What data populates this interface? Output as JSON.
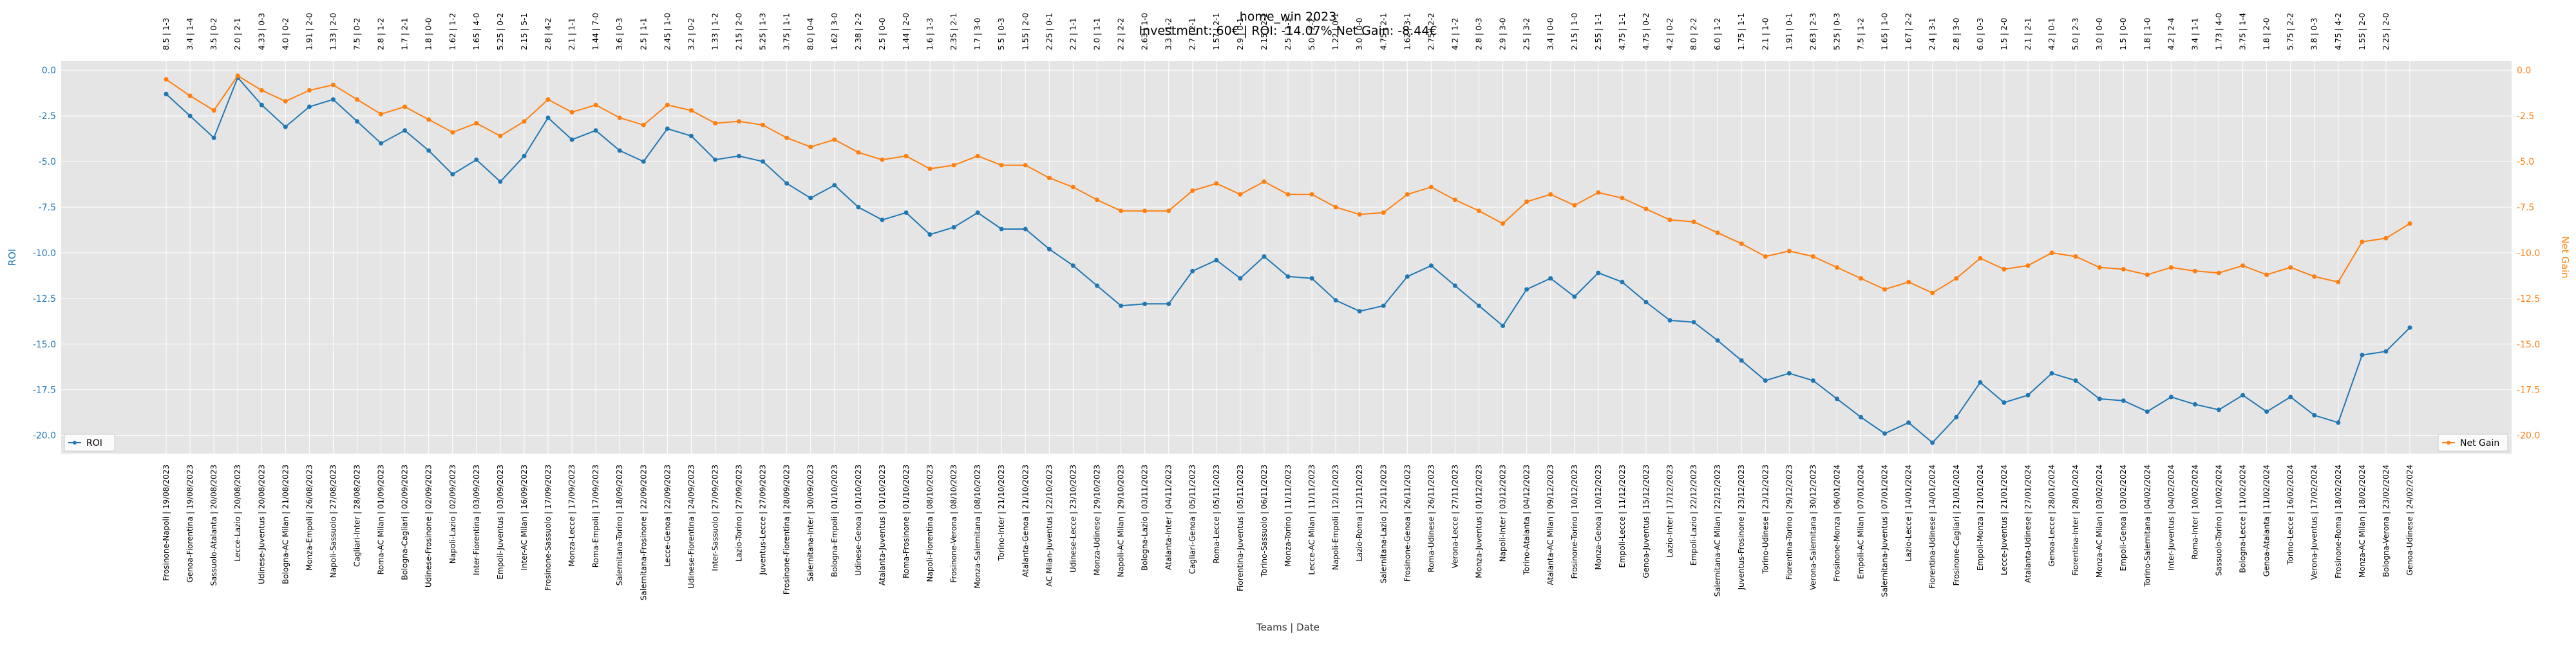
{
  "chart_data": {
    "type": "line",
    "title": "home_win 2023",
    "subtitle": "Investment: 60€ | ROI: -14.07% Net Gain: -8.44€",
    "xlabel": "Teams | Date",
    "ylabel_left": "ROI",
    "ylabel_right": "Net Gain",
    "grid": true,
    "legend_left": "bottom-left",
    "legend_right": "bottom-right",
    "ylim_left": [
      -21,
      0.5
    ],
    "ylim_right": [
      -21,
      0.5
    ],
    "yticks": [
      0.0,
      -2.5,
      -5.0,
      -7.5,
      -10.0,
      -12.5,
      -15.0,
      -17.5,
      -20.0
    ],
    "ytick_labels": [
      "0.0",
      "-2.5",
      "-5.0",
      "-7.5",
      "-10.0",
      "-12.5",
      "-15.0",
      "-17.5",
      "-20.0"
    ],
    "colors": {
      "roi": "#1f77b4",
      "net_gain": "#ff7f0e",
      "plot_bg": "#e5e5e5",
      "grid": "#ffffff"
    },
    "categories": [
      "Frosinone-Napoli | 19/08/2023",
      "Genoa-Fiorentina | 19/08/2023",
      "Sassuolo-Atalanta | 20/08/2023",
      "Lecce-Lazio | 20/08/2023",
      "Udinese-Juventus | 20/08/2023",
      "Bologna-AC Milan | 21/08/2023",
      "Monza-Empoli | 26/08/2023",
      "Napoli-Sassuolo | 27/08/2023",
      "Cagliari-Inter | 28/08/2023",
      "Roma-AC Milan | 01/09/2023",
      "Bologna-Cagliari | 02/09/2023",
      "Udinese-Frosinone | 02/09/2023",
      "Napoli-Lazio | 02/09/2023",
      "Inter-Fiorentina | 03/09/2023",
      "Empoli-Juventus | 03/09/2023",
      "Inter-AC Milan | 16/09/2023",
      "Frosinone-Sassuolo | 17/09/2023",
      "Monza-Lecce | 17/09/2023",
      "Roma-Empoli | 17/09/2023",
      "Salernitana-Torino | 18/09/2023",
      "Salernitana-Frosinone | 22/09/2023",
      "Lecce-Genoa | 22/09/2023",
      "Udinese-Fiorentina | 24/09/2023",
      "Inter-Sassuolo | 27/09/2023",
      "Lazio-Torino | 27/09/2023",
      "Juventus-Lecce | 27/09/2023",
      "Frosinone-Fiorentina | 28/09/2023",
      "Salernitana-Inter | 30/09/2023",
      "Bologna-Empoli | 01/10/2023",
      "Udinese-Genoa | 01/10/2023",
      "Atalanta-Juventus | 01/10/2023",
      "Roma-Frosinone | 01/10/2023",
      "Napoli-Fiorentina | 08/10/2023",
      "Frosinone-Verona | 08/10/2023",
      "Monza-Salernitana | 08/10/2023",
      "Torino-Inter | 21/10/2023",
      "Atalanta-Genoa | 21/10/2023",
      "AC Milan-Juventus | 22/10/2023",
      "Udinese-Lecce | 23/10/2023",
      "Monza-Udinese | 29/10/2023",
      "Napoli-AC Milan | 29/10/2023",
      "Bologna-Lazio | 03/11/2023",
      "Atalanta-Inter | 04/11/2023",
      "Cagliari-Genoa | 05/11/2023",
      "Roma-Lecce | 05/11/2023",
      "Fiorentina-Juventus | 05/11/2023",
      "Torino-Sassuolo | 06/11/2023",
      "Monza-Torino | 11/11/2023",
      "Lecce-AC Milan | 11/11/2023",
      "Napoli-Empoli | 12/11/2023",
      "Lazio-Roma | 12/11/2023",
      "Salernitana-Lazio | 25/11/2023",
      "Frosinone-Genoa | 26/11/2023",
      "Roma-Udinese | 26/11/2023",
      "Verona-Lecce | 27/11/2023",
      "Monza-Juventus | 01/12/2023",
      "Napoli-Inter | 03/12/2023",
      "Torino-Atalanta | 04/12/2023",
      "Atalanta-AC Milan | 09/12/2023",
      "Frosinone-Torino | 10/12/2023",
      "Monza-Genoa | 10/12/2023",
      "Empoli-Lecce | 11/12/2023",
      "Genoa-Juventus | 15/12/2023",
      "Lazio-Inter | 17/12/2023",
      "Empoli-Lazio | 22/12/2023",
      "Salernitana-AC Milan | 22/12/2023",
      "Juventus-Frosinone | 23/12/2023",
      "Torino-Udinese | 23/12/2023",
      "Fiorentina-Torino | 29/12/2023",
      "Verona-Salernitana | 30/12/2023",
      "Frosinone-Monza | 06/01/2024",
      "Empoli-AC Milan | 07/01/2024",
      "Salernitana-Juventus | 07/01/2024",
      "Lazio-Lecce | 14/01/2024",
      "Fiorentina-Udinese | 14/01/2024",
      "Frosinone-Cagliari | 21/01/2024",
      "Empoli-Monza | 21/01/2024",
      "Lecce-Juventus | 21/01/2024",
      "Atalanta-Udinese | 27/01/2024",
      "Genoa-Lecce | 28/01/2024",
      "Fiorentina-Inter | 28/01/2024",
      "Monza-AC Milan | 03/02/2024",
      "Empoli-Genoa | 03/02/2024",
      "Torino-Salernitana | 04/02/2024",
      "Inter-Juventus | 04/02/2024",
      "Roma-Inter | 10/02/2024",
      "Sassuolo-Torino | 10/02/2024",
      "Bologna-Lecce | 11/02/2024",
      "Genoa-Atalanta | 11/02/2024",
      "Torino-Lecce | 16/02/2024",
      "Verona-Juventus | 17/02/2024",
      "Frosinone-Roma | 18/02/2024",
      "Monza-AC Milan | 18/02/2024",
      "Bologna-Verona | 23/02/2024",
      "Genoa-Udinese | 24/02/2024"
    ],
    "odds_labels": [
      "8.5 | 1-3",
      "3.4 | 1-4",
      "3.5 | 0-2",
      "2.0 | 2-1",
      "4.33 | 0-3",
      "4.0 | 0-2",
      "1.91 | 2-0",
      "1.33 | 2-0",
      "7.5 | 0-2",
      "2.8 | 1-2",
      "1.7 | 2-1",
      "1.8 | 0-0",
      "1.62 | 1-2",
      "1.65 | 4-0",
      "5.25 | 0-2",
      "2.15 | 5-1",
      "2.8 | 4-2",
      "2.1 | 1-1",
      "1.44 | 7-0",
      "3.6 | 0-3",
      "2.5 | 1-1",
      "2.45 | 1-0",
      "3.2 | 0-2",
      "1.33 | 1-2",
      "2.15 | 2-0",
      "5.25 | 1-3",
      "3.75 | 1-1",
      "8.0 | 0-4",
      "1.62 | 3-0",
      "2.38 | 2-2",
      "2.5 | 0-0",
      "1.44 | 2-0",
      "1.6 | 1-3",
      "2.35 | 2-1",
      "1.7 | 3-0",
      "5.5 | 0-3",
      "1.55 | 2-0",
      "2.25 | 0-1",
      "2.2 | 1-1",
      "2.0 | 1-1",
      "2.2 | 2-2",
      "2.63 | 1-0",
      "3.3 | 1-2",
      "2.7 | 2-1",
      "1.57 | 2-1",
      "2.9 | 0-1",
      "2.15 | 2-1",
      "2.5 | 1-1",
      "5.0 | 2-2",
      "1.22 | 0-1",
      "3.0 | 0-0",
      "4.75 | 2-1",
      "1.62 | 3-1",
      "2.75 | 2-2",
      "4.2 | 1-2",
      "2.8 | 0-3",
      "2.9 | 3-0",
      "2.5 | 3-2",
      "3.4 | 0-0",
      "2.15 | 1-0",
      "2.55 | 1-1",
      "4.75 | 1-1",
      "4.75 | 0-2",
      "4.2 | 0-2",
      "8.0 | 2-2",
      "6.0 | 1-2",
      "1.75 | 1-1",
      "2.1 | 1-0",
      "1.91 | 0-1",
      "2.63 | 2-3",
      "5.25 | 0-3",
      "7.5 | 1-2",
      "1.65 | 1-0",
      "1.67 | 2-2",
      "2.4 | 3-1",
      "2.8 | 3-0",
      "6.0 | 0-3",
      "1.5 | 2-0",
      "2.1 | 2-1",
      "4.2 | 0-1",
      "5.0 | 2-3",
      "3.0 | 0-0",
      "1.5 | 0-0",
      "1.8 | 1-0",
      "4.2 | 2-4",
      "3.4 | 1-1",
      "1.73 | 4-0",
      "3.75 | 1-4",
      "1.8 | 2-0",
      "5.75 | 2-2",
      "3.8 | 0-3",
      "4.75 | 4-2",
      "1.55 | 2-0",
      "2.25 | 2-0"
    ],
    "series": [
      {
        "name": "ROI",
        "axis": "left",
        "values": [
          -1.3,
          -2.5,
          -3.7,
          -0.4,
          -1.9,
          -3.1,
          -2.0,
          -1.6,
          -2.8,
          -4.0,
          -3.3,
          -4.4,
          -5.7,
          -4.9,
          -6.1,
          -4.7,
          -2.6,
          -3.8,
          -3.3,
          -4.4,
          -5.0,
          -3.2,
          -3.6,
          -4.9,
          -4.7,
          -5.0,
          -6.2,
          -7.0,
          -6.3,
          -7.5,
          -8.2,
          -7.8,
          -9.0,
          -8.6,
          -7.8,
          -8.7,
          -8.7,
          -9.8,
          -10.7,
          -11.8,
          -12.9,
          -12.8,
          -12.8,
          -11.0,
          -10.4,
          -11.4,
          -10.2,
          -11.3,
          -11.4,
          -12.6,
          -13.2,
          -12.9,
          -11.3,
          -10.7,
          -11.8,
          -12.9,
          -14.0,
          -12.0,
          -11.4,
          -12.4,
          -11.1,
          -11.6,
          -12.7,
          -13.7,
          -13.8,
          -14.8,
          -15.9,
          -17.0,
          -16.6,
          -17.0,
          -18.0,
          -19.0,
          -19.9,
          -19.3,
          -20.4,
          -19.0,
          -17.1,
          -18.2,
          -17.8,
          -16.6,
          -17.0,
          -18.0,
          -18.1,
          -18.7,
          -17.9,
          -18.3,
          -18.6,
          -17.8,
          -18.7,
          -17.9,
          -18.9,
          -19.3,
          -15.6,
          -15.4,
          -14.1
        ]
      },
      {
        "name": "Net Gain",
        "axis": "right",
        "values": [
          -0.5,
          -1.4,
          -2.2,
          -0.3,
          -1.1,
          -1.7,
          -1.1,
          -0.8,
          -1.6,
          -2.4,
          -2.0,
          -2.7,
          -3.4,
          -2.9,
          -3.6,
          -2.8,
          -1.6,
          -2.3,
          -1.9,
          -2.6,
          -3.0,
          -1.9,
          -2.2,
          -2.9,
          -2.8,
          -3.0,
          -3.7,
          -4.2,
          -3.8,
          -4.5,
          -4.9,
          -4.7,
          -5.4,
          -5.2,
          -4.7,
          -5.2,
          -5.2,
          -5.9,
          -6.4,
          -7.1,
          -7.7,
          -7.7,
          -7.7,
          -6.6,
          -6.2,
          -6.8,
          -6.1,
          -6.8,
          -6.8,
          -7.5,
          -7.9,
          -7.8,
          -6.8,
          -6.4,
          -7.1,
          -7.7,
          -8.4,
          -7.2,
          -6.8,
          -7.4,
          -6.7,
          -7.0,
          -7.6,
          -8.2,
          -8.3,
          -8.9,
          -9.5,
          -10.2,
          -9.9,
          -10.2,
          -10.8,
          -11.4,
          -12.0,
          -11.6,
          -12.2,
          -11.4,
          -10.3,
          -10.9,
          -10.7,
          -10.0,
          -10.2,
          -10.8,
          -10.9,
          -11.2,
          -10.8,
          -11.0,
          -11.1,
          -10.7,
          -11.2,
          -10.8,
          -11.3,
          -11.6,
          -9.4,
          -9.2,
          -8.4
        ]
      }
    ]
  }
}
